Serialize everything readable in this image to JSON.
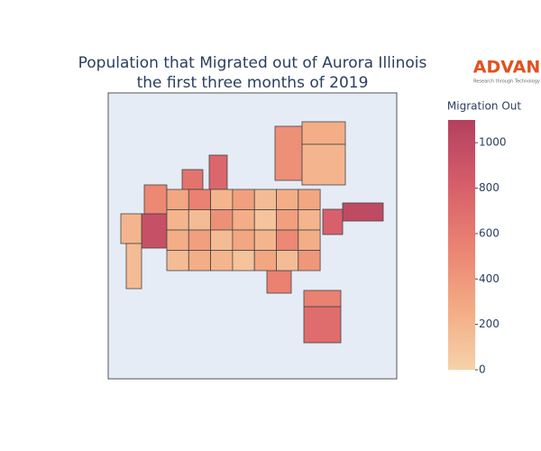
{
  "chart_data": {
    "type": "choropleth",
    "title": [
      "Population that Migrated out of Aurora Illinois",
      "the first three months of 2019"
    ],
    "colorbar_title": "Migration Out",
    "zlim": [
      0,
      1100
    ],
    "zticks": [
      0,
      200,
      400,
      600,
      800,
      1000
    ],
    "colorscale": [
      "#f6d2a9",
      "#f3aa84",
      "#ea8171",
      "#d55d6a",
      "#b3405f"
    ],
    "values": [
      450,
      250,
      200,
      750,
      650,
      950,
      200,
      1000,
      800,
      550,
      700,
      550,
      500,
      150,
      300,
      550,
      200,
      350,
      150,
      250,
      300,
      200,
      150,
      450,
      250,
      100,
      350,
      200,
      250,
      350,
      150,
      300,
      200,
      500,
      250,
      150,
      250,
      200,
      100,
      300,
      150,
      400
    ],
    "logo": {
      "text": "ADVAN",
      "tagline": "Research through Technology"
    }
  }
}
